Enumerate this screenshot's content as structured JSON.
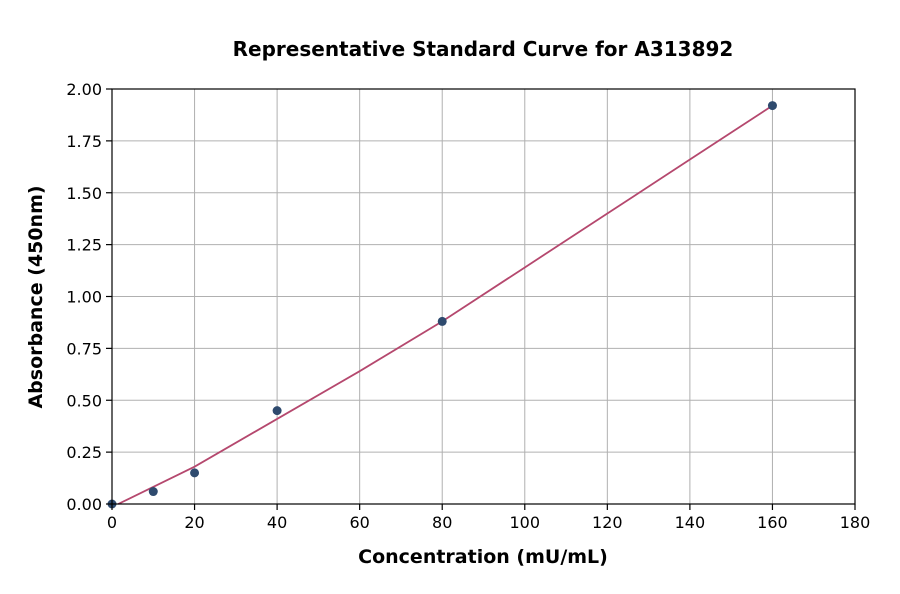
{
  "chart_data": {
    "type": "scatter",
    "title": "Representative Standard Curve for A313892",
    "xlabel": "Concentration (mU/mL)",
    "ylabel": "Absorbance (450nm)",
    "xlim": [
      0,
      180
    ],
    "ylim": [
      0,
      2.0
    ],
    "x_ticks": [
      "0",
      "20",
      "40",
      "60",
      "80",
      "100",
      "120",
      "140",
      "160",
      "180"
    ],
    "y_ticks": [
      "0.00",
      "0.25",
      "0.50",
      "0.75",
      "1.00",
      "1.25",
      "1.50",
      "1.75",
      "2.00"
    ],
    "grid": true,
    "series": [
      {
        "kind": "points",
        "x": [
          0,
          10,
          20,
          40,
          80,
          160
        ],
        "y": [
          0.0,
          0.06,
          0.15,
          0.45,
          0.88,
          1.92
        ]
      },
      {
        "kind": "fit_curve",
        "x": [
          1.5,
          20,
          40,
          60,
          80,
          100,
          120,
          140,
          160
        ],
        "y": [
          0.0,
          0.18,
          0.41,
          0.64,
          0.88,
          1.14,
          1.4,
          1.66,
          1.92
        ]
      }
    ],
    "colors": {
      "points": "#2e4a6e",
      "fit_curve": "#b5486e",
      "grid": "#b0b0b0"
    }
  }
}
